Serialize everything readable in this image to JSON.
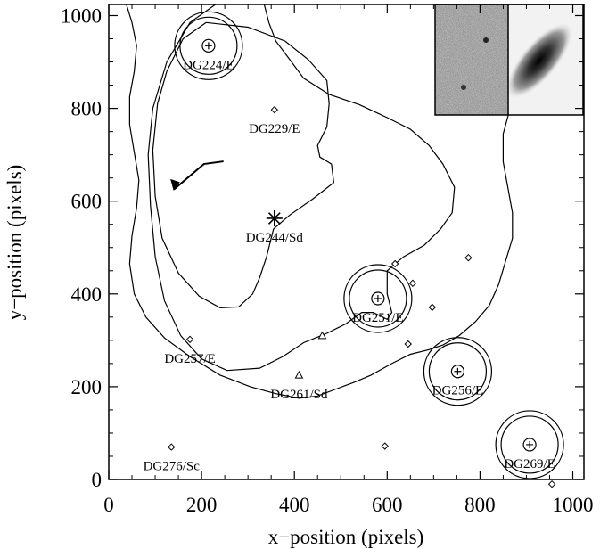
{
  "chart_data": {
    "type": "scatter",
    "xlabel": "x−position (pixels)",
    "ylabel": "y−position (pixels)",
    "xlim": [
      0,
      1024
    ],
    "ylim": [
      0,
      1024
    ],
    "xticks": [
      0,
      200,
      400,
      600,
      800,
      1000
    ],
    "yticks": [
      0,
      200,
      400,
      600,
      800,
      1000
    ],
    "galaxies": [
      {
        "label": "DG224/E",
        "x": 215,
        "y": 935,
        "marker": "circled-plus",
        "aperture": true
      },
      {
        "label": "DG251/E",
        "x": 580,
        "y": 390,
        "marker": "circled-plus",
        "aperture": true
      },
      {
        "label": "DG256/E",
        "x": 752,
        "y": 233,
        "marker": "circled-plus",
        "aperture": true
      },
      {
        "label": "DG269/E",
        "x": 907,
        "y": 75,
        "marker": "circled-plus",
        "aperture": true
      },
      {
        "label": "DG244/Sd",
        "x": 357,
        "y": 563,
        "marker": "asterisk",
        "aperture": false
      },
      {
        "label": "DG229/E",
        "x": 357,
        "y": 797,
        "marker": "diamond",
        "aperture": false
      },
      {
        "label": "DG257/E",
        "x": 175,
        "y": 302,
        "marker": "diamond",
        "aperture": false
      },
      {
        "label": "DG261/Sd",
        "x": 410,
        "y": 225,
        "marker": "triangle",
        "aperture": false
      },
      {
        "label": "DG276/Sc",
        "x": 135,
        "y": 70,
        "marker": "diamond",
        "aperture": false
      }
    ],
    "extra_points": [
      {
        "x": 460,
        "y": 310,
        "marker": "triangle"
      },
      {
        "x": 617,
        "y": 465,
        "marker": "diamond"
      },
      {
        "x": 655,
        "y": 423,
        "marker": "diamond"
      },
      {
        "x": 697,
        "y": 371,
        "marker": "diamond"
      },
      {
        "x": 645,
        "y": 292,
        "marker": "diamond"
      },
      {
        "x": 775,
        "y": 478,
        "marker": "diamond"
      },
      {
        "x": 595,
        "y": 72,
        "marker": "diamond"
      },
      {
        "x": 955,
        "y": -10,
        "marker": "diamond"
      }
    ],
    "contours": [
      [
        [
          210,
          985
        ],
        [
          300,
          975
        ],
        [
          380,
          945
        ],
        [
          430,
          905
        ],
        [
          470,
          860
        ],
        [
          475,
          810
        ],
        [
          470,
          760
        ],
        [
          450,
          720
        ],
        [
          455,
          695
        ],
        [
          480,
          680
        ],
        [
          485,
          640
        ],
        [
          440,
          605
        ],
        [
          390,
          570
        ],
        [
          355,
          540
        ],
        [
          340,
          480
        ],
        [
          325,
          435
        ],
        [
          310,
          400
        ],
        [
          280,
          372
        ],
        [
          240,
          370
        ],
        [
          195,
          395
        ],
        [
          150,
          445
        ],
        [
          115,
          520
        ],
        [
          100,
          610
        ],
        [
          95,
          710
        ],
        [
          105,
          810
        ],
        [
          125,
          880
        ],
        [
          160,
          950
        ],
        [
          210,
          985
        ]
      ],
      [
        [
          230,
          1024
        ],
        [
          175,
          985
        ],
        [
          125,
          900
        ],
        [
          95,
          800
        ],
        [
          85,
          700
        ],
        [
          90,
          590
        ],
        [
          100,
          480
        ],
        [
          120,
          385
        ],
        [
          155,
          310
        ],
        [
          200,
          260
        ],
        [
          255,
          235
        ],
        [
          325,
          240
        ],
        [
          375,
          265
        ],
        [
          420,
          295
        ],
        [
          470,
          315
        ],
        [
          510,
          335
        ],
        [
          545,
          360
        ],
        [
          570,
          360
        ],
        [
          600,
          345
        ],
        [
          610,
          360
        ],
        [
          600,
          400
        ],
        [
          600,
          450
        ],
        [
          635,
          480
        ],
        [
          680,
          505
        ],
        [
          715,
          540
        ],
        [
          740,
          575
        ],
        [
          745,
          630
        ],
        [
          720,
          680
        ],
        [
          690,
          720
        ],
        [
          650,
          755
        ],
        [
          600,
          780
        ],
        [
          540,
          808
        ],
        [
          475,
          830
        ],
        [
          420,
          865
        ],
        [
          390,
          905
        ],
        [
          360,
          945
        ],
        [
          345,
          985
        ],
        [
          335,
          1024
        ]
      ],
      [
        [
          38,
          1024
        ],
        [
          50,
          985
        ],
        [
          60,
          935
        ],
        [
          55,
          880
        ],
        [
          45,
          825
        ],
        [
          45,
          765
        ],
        [
          55,
          705
        ],
        [
          65,
          645
        ],
        [
          60,
          585
        ],
        [
          50,
          525
        ],
        [
          45,
          465
        ],
        [
          55,
          400
        ],
        [
          80,
          350
        ],
        [
          120,
          305
        ],
        [
          175,
          265
        ],
        [
          240,
          225
        ],
        [
          305,
          200
        ],
        [
          360,
          185
        ],
        [
          410,
          175
        ],
        [
          450,
          180
        ],
        [
          490,
          195
        ],
        [
          530,
          210
        ],
        [
          565,
          225
        ],
        [
          610,
          250
        ],
        [
          650,
          270
        ],
        [
          690,
          280
        ],
        [
          720,
          290
        ],
        [
          755,
          310
        ],
        [
          790,
          340
        ],
        [
          820,
          375
        ],
        [
          840,
          420
        ],
        [
          855,
          470
        ],
        [
          870,
          520
        ],
        [
          870,
          575
        ],
        [
          860,
          630
        ],
        [
          850,
          685
        ],
        [
          850,
          745
        ],
        [
          865,
          800
        ],
        [
          870,
          860
        ],
        [
          855,
          920
        ],
        [
          840,
          975
        ],
        [
          835,
          1024
        ]
      ]
    ],
    "orientation_arrow": {
      "x0": 205,
      "y0": 680,
      "x1": 140,
      "y1": 625
    },
    "inset_images": [
      "raw-image-stamp",
      "model-image-stamp"
    ]
  }
}
